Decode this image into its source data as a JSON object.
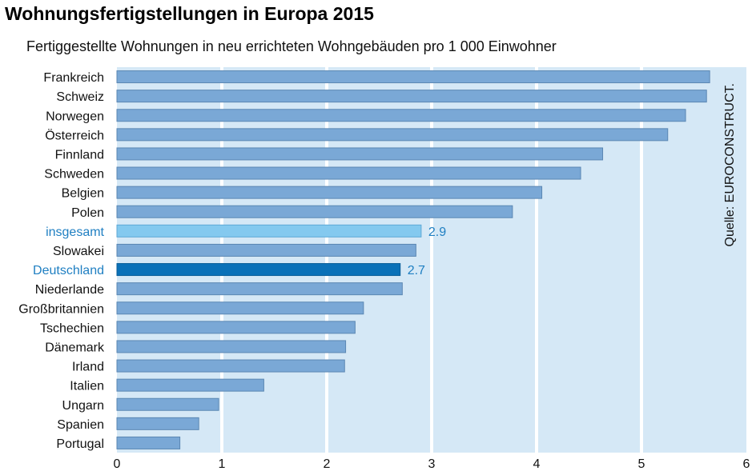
{
  "title": "Wohnungsfertigstellungen in Europa 2015",
  "subtitle": "Fertiggestellte Wohnungen in neu errichteten Wohngebäuden pro 1 000 Einwohner",
  "source": "Quelle: EUROCONSTRUCT.",
  "colors": {
    "background": "#d5e8f6",
    "bar": "#7aa8d6",
    "bar_border": "#5b87b3",
    "total": "#84c9ef",
    "germany": "#0a71b8",
    "highlight_text": "#1f7fc2",
    "grid": "#ffffff"
  },
  "chart_data": {
    "type": "bar",
    "orientation": "horizontal",
    "title": "Wohnungsfertigstellungen in Europa 2015",
    "subtitle": "Fertiggestellte Wohnungen in neu errichteten Wohngebäuden pro 1 000 Einwohner",
    "categories": [
      "Frankreich",
      "Schweiz",
      "Norwegen",
      "Österreich",
      "Finnland",
      "Schweden",
      "Belgien",
      "Polen",
      "insgesamt",
      "Slowakei",
      "Deutschland",
      "Niederlande",
      "Großbritannien",
      "Tschechien",
      "Dänemark",
      "Irland",
      "Italien",
      "Ungarn",
      "Spanien",
      "Portugal"
    ],
    "values": [
      5.65,
      5.62,
      5.42,
      5.25,
      4.63,
      4.42,
      4.05,
      3.77,
      2.9,
      2.85,
      2.7,
      2.72,
      2.35,
      2.27,
      2.18,
      2.17,
      1.4,
      0.97,
      0.78,
      0.6
    ],
    "highlighted": [
      "insgesamt",
      "Deutschland"
    ],
    "data_labels": [
      {
        "category": "insgesamt",
        "text": "2.9"
      },
      {
        "category": "Deutschland",
        "text": "2.7"
      }
    ],
    "xlim": [
      0,
      6
    ],
    "xticks": [
      "0",
      "1",
      "2",
      "3",
      "4",
      "5",
      "6"
    ],
    "xlabel": "",
    "ylabel": "",
    "grid": true
  }
}
